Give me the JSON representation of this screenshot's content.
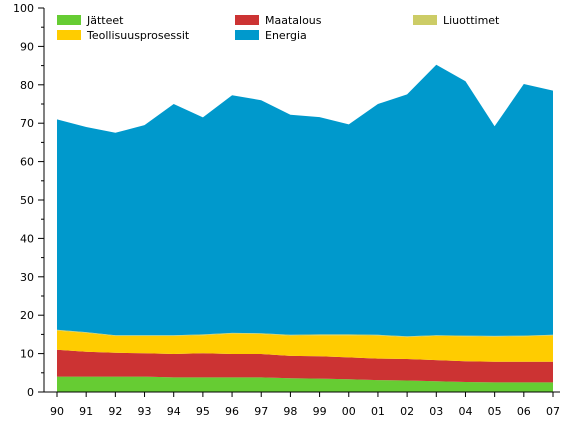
{
  "chart_data": {
    "type": "area",
    "stacked": true,
    "categories": [
      "90",
      "91",
      "92",
      "93",
      "94",
      "95",
      "96",
      "97",
      "98",
      "99",
      "00",
      "01",
      "02",
      "03",
      "04",
      "05",
      "06",
      "07"
    ],
    "ylim": [
      0,
      100
    ],
    "yticks": [
      0,
      10,
      20,
      30,
      40,
      50,
      60,
      70,
      80,
      90,
      100
    ],
    "legend_position": "top",
    "grid": false,
    "series": [
      {
        "name": "Jätteet",
        "color": "#66cc33",
        "values": [
          4.0,
          4.0,
          4.0,
          4.0,
          3.8,
          3.8,
          3.8,
          3.8,
          3.6,
          3.5,
          3.3,
          3.1,
          3.0,
          2.8,
          2.6,
          2.5,
          2.5,
          2.5
        ]
      },
      {
        "name": "Maatalous",
        "color": "#cc3333",
        "values": [
          7.0,
          6.5,
          6.2,
          6.1,
          6.1,
          6.3,
          6.1,
          6.1,
          5.8,
          5.8,
          5.7,
          5.6,
          5.6,
          5.5,
          5.4,
          5.4,
          5.4,
          5.4
        ]
      },
      {
        "name": "Teollisuusprosessit",
        "color": "#ffcc00",
        "values": [
          5.0,
          4.9,
          4.4,
          4.5,
          4.7,
          4.7,
          5.3,
          5.2,
          5.3,
          5.5,
          5.8,
          6.0,
          5.7,
          6.3,
          6.5,
          6.5,
          6.6,
          6.8
        ]
      },
      {
        "name": "Liuottimet",
        "color": "#cccc66",
        "values": [
          0.2,
          0.2,
          0.2,
          0.2,
          0.2,
          0.2,
          0.2,
          0.2,
          0.2,
          0.2,
          0.2,
          0.2,
          0.2,
          0.2,
          0.2,
          0.2,
          0.2,
          0.2
        ]
      },
      {
        "name": "Energia",
        "color": "#0099cc",
        "values": [
          54.8,
          53.4,
          52.7,
          54.7,
          60.2,
          56.5,
          61.9,
          60.7,
          57.3,
          56.6,
          54.7,
          60.1,
          63.0,
          70.4,
          66.2,
          54.6,
          65.5,
          63.6
        ]
      }
    ],
    "legend_order": [
      "Jätteet",
      "Maatalous",
      "Liuottimet",
      "Teollisuusprosessit",
      "Energia"
    ]
  }
}
